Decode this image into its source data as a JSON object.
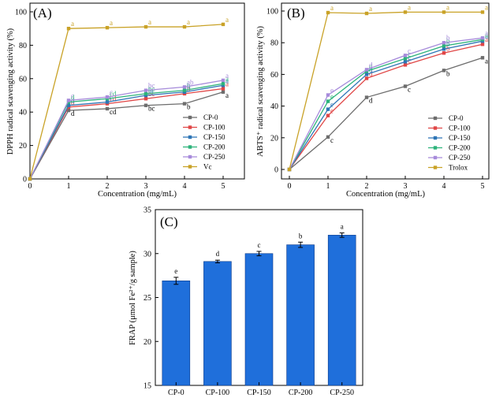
{
  "chart_data": [
    {
      "panel": "(A)",
      "type": "line",
      "xlabel": "Concentration (mg/mL)",
      "ylabel": "DPPH radical scavenging activity (%)",
      "xlim": [
        0,
        5
      ],
      "ylim": [
        0,
        100
      ],
      "xticks": [
        0,
        1,
        2,
        3,
        4,
        5
      ],
      "yticks": [
        0,
        20,
        40,
        60,
        80,
        100
      ],
      "legend_position": "lower-right",
      "x": [
        0,
        1,
        2,
        3,
        4,
        5
      ],
      "series": [
        {
          "name": "CP-0",
          "color": "#6d6d6d",
          "values": [
            0,
            41,
            42,
            44,
            45,
            52
          ],
          "labels": [
            "",
            "d",
            "cd",
            "bc",
            "b",
            "a"
          ]
        },
        {
          "name": "CP-100",
          "color": "#e04646",
          "values": [
            0,
            43,
            45,
            48,
            51,
            54
          ],
          "labels": [
            "",
            "d",
            "cd",
            "bc",
            "b",
            "a"
          ]
        },
        {
          "name": "CP-150",
          "color": "#2e75b6",
          "values": [
            0,
            44,
            46,
            50,
            52,
            56
          ],
          "labels": [
            "",
            "d",
            "c",
            "bc",
            "b",
            "a"
          ]
        },
        {
          "name": "CP-200",
          "color": "#2db37b",
          "values": [
            0,
            46,
            48,
            51,
            53,
            57
          ],
          "labels": [
            "",
            "d",
            "cd",
            "bc",
            "b",
            "a"
          ]
        },
        {
          "name": "CP-250",
          "color": "#a78bdb",
          "values": [
            0,
            47,
            49,
            53,
            55,
            59
          ],
          "labels": [
            "",
            "c",
            "c",
            "bc",
            "ab",
            "a"
          ]
        },
        {
          "name": "Vc",
          "color": "#c9a227",
          "values": [
            0,
            90,
            90.5,
            91,
            91,
            92.5
          ],
          "labels": [
            "",
            "a",
            "a",
            "a",
            "a",
            "a"
          ]
        }
      ]
    },
    {
      "panel": "(B)",
      "type": "line",
      "xlabel": "Concentration (mg/mL)",
      "ylabel": "ABTS⁺ radical scavenging activity (%)",
      "xlim": [
        0,
        5
      ],
      "ylim": [
        0,
        100
      ],
      "xticks": [
        0,
        1,
        2,
        3,
        4,
        5
      ],
      "yticks": [
        0,
        20,
        40,
        60,
        80,
        100
      ],
      "legend_position": "lower-right",
      "x": [
        0,
        1,
        2,
        3,
        4,
        5
      ],
      "series": [
        {
          "name": "CP-0",
          "color": "#6d6d6d",
          "values": [
            0,
            20.5,
            45.5,
            52.5,
            62.5,
            70.5
          ],
          "labels": [
            "",
            "c",
            "d",
            "c",
            "b",
            "a"
          ]
        },
        {
          "name": "CP-100",
          "color": "#e04646",
          "values": [
            0,
            34,
            57.5,
            66,
            73.5,
            79
          ],
          "labels": [
            "",
            "e",
            "d",
            "c",
            "b",
            "a"
          ]
        },
        {
          "name": "CP-150",
          "color": "#2e75b6",
          "values": [
            0,
            38,
            60,
            68,
            76,
            81
          ],
          "labels": [
            "",
            "e",
            "d",
            "c",
            "b",
            "a"
          ]
        },
        {
          "name": "CP-200",
          "color": "#2db37b",
          "values": [
            0,
            43,
            62,
            70,
            78,
            82
          ],
          "labels": [
            "",
            "e",
            "d",
            "c",
            "b",
            "a"
          ]
        },
        {
          "name": "CP-250",
          "color": "#a78bdb",
          "values": [
            0,
            47,
            63,
            72,
            80,
            83
          ],
          "labels": [
            "",
            "e",
            "d",
            "c",
            "b",
            "a"
          ]
        },
        {
          "name": "Trolox",
          "color": "#c9a227",
          "values": [
            0,
            99,
            98.5,
            99.3,
            99.3,
            99.3
          ],
          "labels": [
            "",
            "a",
            "a",
            "a",
            "a",
            "a"
          ]
        }
      ]
    },
    {
      "panel": "(C)",
      "type": "bar",
      "xlabel": "",
      "ylabel": "FRAP (μmol Fe²⁺/g sample)",
      "ylim": [
        15,
        35
      ],
      "yticks": [
        15,
        20,
        25,
        30,
        35
      ],
      "categories": [
        "CP-0",
        "CP-100",
        "CP-150",
        "CP-200",
        "CP-250"
      ],
      "values": [
        26.9,
        29.1,
        30,
        31,
        32.1
      ],
      "errors": [
        0.4,
        0.15,
        0.25,
        0.3,
        0.25
      ],
      "labels": [
        "e",
        "d",
        "c",
        "b",
        "a"
      ],
      "color": "#1f6fdb"
    }
  ]
}
